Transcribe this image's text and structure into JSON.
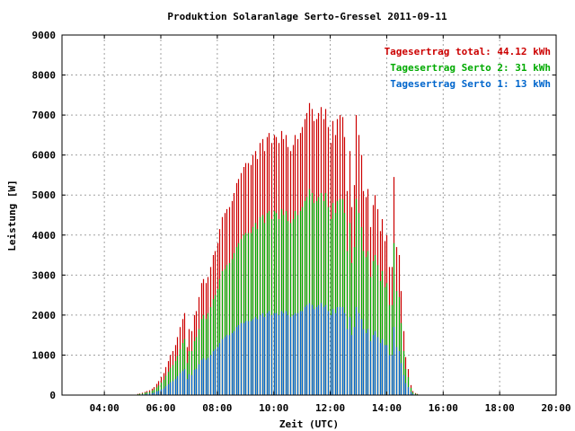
{
  "chart_data": {
    "type": "bar",
    "title": "Produktion Solaranlage Serto-Gressel 2011-09-11",
    "xlabel": "Zeit (UTC)",
    "ylabel": "Leistung [W]",
    "ylim": [
      0,
      9000
    ],
    "yticks": [
      "0",
      "1000",
      "2000",
      "3000",
      "4000",
      "5000",
      "6000",
      "7000",
      "8000",
      "9000"
    ],
    "xlim": [
      2.5,
      20
    ],
    "xticks": [
      {
        "v": 4,
        "label": "04:00"
      },
      {
        "v": 6,
        "label": "06:00"
      },
      {
        "v": 8,
        "label": "08:00"
      },
      {
        "v": 10,
        "label": "10:00"
      },
      {
        "v": 12,
        "label": "12:00"
      },
      {
        "v": 14,
        "label": "14:00"
      },
      {
        "v": 16,
        "label": "16:00"
      },
      {
        "v": 18,
        "label": "18:00"
      },
      {
        "v": 20,
        "label": "20:00"
      }
    ],
    "grid": true,
    "legend_position": "top-right",
    "interval_hours": 0.08333,
    "series": [
      {
        "name": "Tagesertrag total: 44.12 kWh",
        "color": "#cc0000",
        "start_hour": 5.0,
        "values": [
          0,
          0,
          30,
          40,
          60,
          80,
          100,
          120,
          160,
          200,
          280,
          350,
          450,
          550,
          700,
          850,
          1000,
          1100,
          1250,
          1450,
          1700,
          1900,
          2050,
          1200,
          1650,
          1600,
          2000,
          2100,
          2450,
          2800,
          2900,
          2800,
          2950,
          3200,
          3500,
          3600,
          3800,
          4150,
          4450,
          4550,
          4650,
          4700,
          4850,
          5050,
          5300,
          5400,
          5550,
          5700,
          5800,
          5800,
          5750,
          6000,
          6100,
          5900,
          6300,
          6400,
          6100,
          6450,
          6550,
          6300,
          6500,
          6450,
          6300,
          6600,
          6400,
          6500,
          6200,
          6100,
          6250,
          6500,
          6400,
          6550,
          6700,
          6900,
          7050,
          7300,
          7150,
          6850,
          6900,
          7050,
          7200,
          6900,
          7150,
          6700,
          6300,
          6850,
          6500,
          6900,
          7000,
          6950,
          6450,
          5100,
          6100,
          4700,
          5250,
          7000,
          6500,
          6000,
          5100,
          4950,
          5150,
          4200,
          4750,
          5000,
          4650,
          4100,
          4400,
          3850,
          4000,
          3200,
          3200,
          5450,
          3700,
          3500,
          2600,
          1600,
          950,
          650,
          250,
          100,
          50,
          30
        ]
      },
      {
        "name": "Tagesertrag Serto 2: 31 kWh",
        "color": "#00aa00",
        "start_hour": 5.0,
        "values": [
          0,
          0,
          20,
          30,
          40,
          60,
          70,
          80,
          110,
          140,
          190,
          240,
          310,
          380,
          480,
          580,
          680,
          750,
          850,
          980,
          1150,
          1300,
          1400,
          800,
          1100,
          1100,
          1350,
          1450,
          1650,
          1900,
          2000,
          1900,
          2050,
          2200,
          2400,
          2500,
          2650,
          2900,
          3100,
          3150,
          3250,
          3300,
          3400,
          3550,
          3700,
          3800,
          3900,
          4000,
          4050,
          4050,
          4050,
          4200,
          4300,
          4150,
          4450,
          4500,
          4300,
          4550,
          4600,
          4400,
          4600,
          4550,
          4400,
          4650,
          4500,
          4600,
          4350,
          4300,
          4400,
          4600,
          4500,
          4600,
          4700,
          4850,
          4950,
          5150,
          5050,
          4800,
          4850,
          4950,
          5050,
          4850,
          5050,
          4700,
          4400,
          4800,
          4550,
          4850,
          4900,
          4900,
          4550,
          3600,
          4300,
          3300,
          3700,
          4900,
          4550,
          4200,
          3600,
          3450,
          3600,
          2950,
          3350,
          3500,
          3250,
          2850,
          3100,
          2700,
          2800,
          2250,
          2250,
          3800,
          2600,
          2450,
          1800,
          1100,
          650,
          450,
          180,
          70,
          35,
          20
        ]
      },
      {
        "name": "Tagesertrag Serto 1: 13 kWh",
        "color": "#0066cc",
        "start_hour": 5.0,
        "values": [
          0,
          0,
          10,
          10,
          20,
          20,
          30,
          40,
          50,
          60,
          90,
          110,
          140,
          170,
          220,
          270,
          320,
          350,
          400,
          470,
          550,
          600,
          650,
          400,
          520,
          500,
          630,
          660,
          770,
          880,
          920,
          880,
          930,
          1000,
          1100,
          1150,
          1200,
          1300,
          1400,
          1450,
          1500,
          1500,
          1550,
          1600,
          1700,
          1750,
          1800,
          1800,
          1850,
          1850,
          1850,
          1900,
          1950,
          1900,
          2000,
          2050,
          1950,
          2050,
          2100,
          2000,
          2050,
          2050,
          2000,
          2100,
          2050,
          2100,
          2000,
          1950,
          2000,
          2050,
          2050,
          2100,
          2100,
          2200,
          2250,
          2300,
          2250,
          2150,
          2200,
          2250,
          2300,
          2200,
          2250,
          2100,
          2000,
          2150,
          2050,
          2200,
          2200,
          2200,
          2050,
          1650,
          1950,
          1500,
          1700,
          2200,
          2050,
          1900,
          1650,
          1550,
          1650,
          1350,
          1500,
          1600,
          1450,
          1300,
          1400,
          1250,
          1250,
          1000,
          1000,
          1700,
          1200,
          1100,
          800,
          500,
          300,
          200,
          80,
          30,
          15,
          10
        ]
      }
    ]
  }
}
